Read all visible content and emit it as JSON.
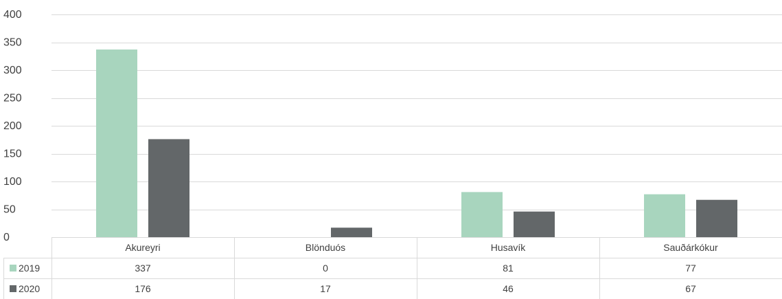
{
  "chart_data": {
    "type": "bar",
    "categories": [
      "Akureyri",
      "Blönduós",
      "Husavík",
      "Sauðárkókur"
    ],
    "series": [
      {
        "name": "2019",
        "values": [
          337,
          0,
          81,
          77
        ],
        "color": "#a8d5be"
      },
      {
        "name": "2020",
        "values": [
          176,
          17,
          46,
          67
        ],
        "color": "#636769"
      }
    ],
    "ylim": [
      0,
      400
    ],
    "yticks": [
      0,
      50,
      100,
      150,
      200,
      250,
      300,
      350,
      400
    ],
    "grid": true,
    "legend": "data-table",
    "data_table": {
      "rows": [
        {
          "series": "2019",
          "values": [
            "337",
            "0",
            "81",
            "77"
          ]
        },
        {
          "series": "2020",
          "values": [
            "176",
            "17",
            "46",
            "67"
          ]
        }
      ]
    }
  }
}
